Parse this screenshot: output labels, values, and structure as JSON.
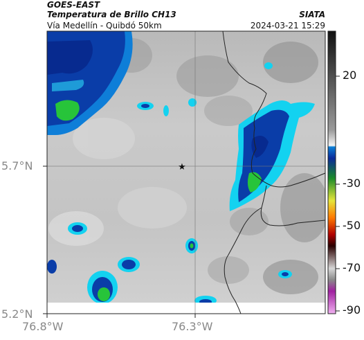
{
  "header": {
    "satellite": "GOES-EAST",
    "product": "Temperatura de Brillo CH13",
    "route": "Vía Medellín - Quibdó 50km",
    "agency": "SIATA",
    "datetime": "2024-03-21 15:29"
  },
  "axes": {
    "lat_labels": [
      "5.7°N",
      "5.2°N"
    ],
    "lon_labels": [
      "76.8°W",
      "76.3°W"
    ]
  },
  "colorbar": {
    "ticks": [
      "20",
      "-30",
      "-50",
      "-70",
      "-90"
    ]
  },
  "marker": {
    "symbol": "★"
  },
  "colors": {
    "border": "#222222",
    "grid": "#777777",
    "cold_cloud_blue": "#0a3da8",
    "cyan": "#13d2f0",
    "green": "#27c43a"
  }
}
